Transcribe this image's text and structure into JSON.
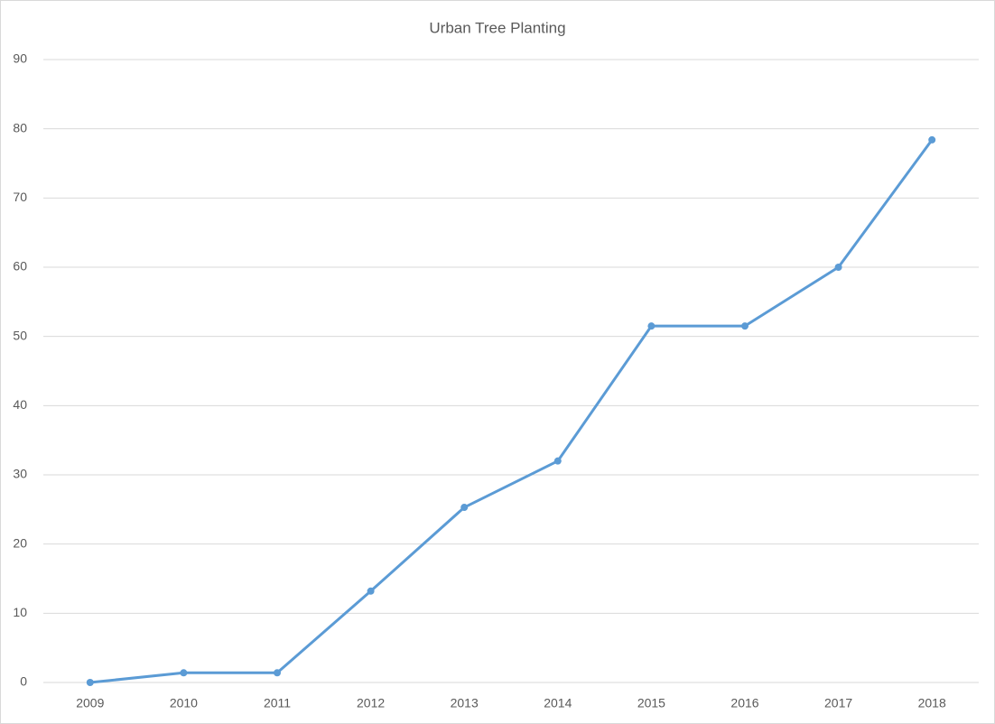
{
  "chart_data": {
    "type": "line",
    "title": "Urban Tree Planting",
    "categories": [
      "2009",
      "2010",
      "2011",
      "2012",
      "2013",
      "2014",
      "2015",
      "2016",
      "2017",
      "2018"
    ],
    "series": [
      {
        "name": "Urban Tree Planting",
        "color": "#5b9bd5",
        "values": [
          0,
          1.4,
          1.4,
          13.2,
          25.3,
          32,
          51.5,
          51.5,
          60,
          78.4
        ]
      }
    ],
    "ylim": [
      0,
      90
    ],
    "yticks": [
      0,
      10,
      20,
      30,
      40,
      50,
      60,
      70,
      80,
      90
    ],
    "grid": true,
    "legend": false
  }
}
